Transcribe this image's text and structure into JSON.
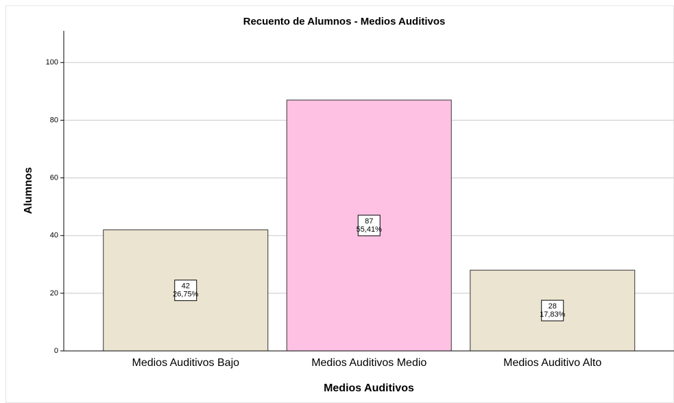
{
  "chart_data": {
    "type": "bar",
    "title": "Recuento de Alumnos - Medios Auditivos",
    "x_label": "Medios Auditivos",
    "y_label": "Alumnos",
    "categories": [
      "Medios Auditivos Bajo",
      "Medios Auditivos Medio",
      "Medios Auditivo Alto"
    ],
    "values": [
      42,
      87,
      28
    ],
    "colors": [
      "#ebe4d0",
      "#ffc1e3",
      "#ebe4d0"
    ],
    "percent_values": [
      26.75,
      55.41,
      17.83
    ],
    "percent_labels": [
      "26,75%",
      "55,41%",
      "17,83%"
    ],
    "ylim": [
      0,
      111
    ],
    "yticks": [
      0,
      20,
      40,
      60,
      80,
      100
    ],
    "grid": true
  }
}
